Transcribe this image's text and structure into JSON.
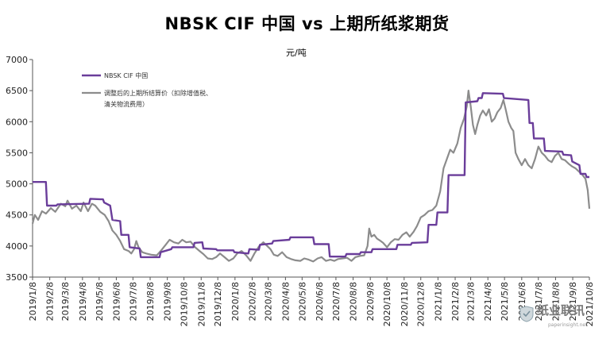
{
  "title": "NBSK CIF 中国 vs 上期所纸浆期货",
  "unit": "元/吨",
  "watermark": {
    "main": "纸业联讯",
    "url": "paperinsight.net"
  },
  "chart_data": {
    "type": "line",
    "title": "NBSK CIF 中国 vs 上期所纸浆期货",
    "ylabel": "元/吨",
    "ylim": [
      3500,
      7000
    ],
    "yticks": [
      3500,
      4000,
      4500,
      5000,
      5500,
      6000,
      6500,
      7000
    ],
    "xlim": [
      "2019/1/8",
      "2021/10/8"
    ],
    "xticks": [
      "2019/1/8",
      "2019/2/8",
      "2019/3/8",
      "2019/4/8",
      "2019/5/8",
      "2019/6/8",
      "2019/7/8",
      "2019/8/8",
      "2019/9/8",
      "2019/10/8",
      "2019/11/8",
      "2019/12/8",
      "2020/1/8",
      "2020/2/8",
      "2020/3/8",
      "2020/4/8",
      "2020/5/8",
      "2020/6/8",
      "2020/7/8",
      "2020/8/8",
      "2020/9/8",
      "2020/10/8",
      "2020/11/8",
      "2020/12/8",
      "2021/1/8",
      "2021/2/8",
      "2021/3/8",
      "2021/4/8",
      "2021/5/8",
      "2021/6/8",
      "2021/7/8",
      "2021/8/8",
      "2021/9/8",
      "2021/10/8"
    ],
    "grid": false,
    "legend": "top-left",
    "series": [
      {
        "name": "NBSK CIF 中国",
        "color": "#6a3d9a",
        "step": true,
        "points": [
          [
            "2019/1/8",
            5030
          ],
          [
            "2019/2/1",
            5030
          ],
          [
            "2019/2/3",
            4650
          ],
          [
            "2019/2/20",
            4650
          ],
          [
            "2019/2/22",
            4670
          ],
          [
            "2019/4/20",
            4680
          ],
          [
            "2019/4/22",
            4760
          ],
          [
            "2019/5/15",
            4750
          ],
          [
            "2019/5/17",
            4700
          ],
          [
            "2019/5/28",
            4650
          ],
          [
            "2019/6/1",
            4420
          ],
          [
            "2019/6/15",
            4400
          ],
          [
            "2019/6/17",
            4180
          ],
          [
            "2019/6/30",
            4180
          ],
          [
            "2019/7/2",
            3980
          ],
          [
            "2019/7/20",
            3960
          ],
          [
            "2019/7/22",
            3820
          ],
          [
            "2019/8/25",
            3820
          ],
          [
            "2019/8/27",
            3900
          ],
          [
            "2019/9/15",
            3950
          ],
          [
            "2019/9/17",
            3980
          ],
          [
            "2019/10/25",
            3980
          ],
          [
            "2019/10/27",
            4050
          ],
          [
            "2019/11/10",
            4060
          ],
          [
            "2019/11/12",
            3960
          ],
          [
            "2019/12/5",
            3950
          ],
          [
            "2019/12/7",
            3930
          ],
          [
            "2020/1/5",
            3930
          ],
          [
            "2020/1/7",
            3900
          ],
          [
            "2020/2/1",
            3880
          ],
          [
            "2020/2/3",
            3950
          ],
          [
            "2020/2/20",
            3940
          ],
          [
            "2020/2/22",
            4020
          ],
          [
            "2020/3/15",
            4040
          ],
          [
            "2020/3/17",
            4080
          ],
          [
            "2020/4/15",
            4100
          ],
          [
            "2020/4/17",
            4140
          ],
          [
            "2020/5/28",
            4140
          ],
          [
            "2020/5/30",
            4030
          ],
          [
            "2020/6/25",
            4030
          ],
          [
            "2020/6/27",
            3830
          ],
          [
            "2020/7/25",
            3830
          ],
          [
            "2020/7/27",
            3870
          ],
          [
            "2020/8/20",
            3870
          ],
          [
            "2020/8/22",
            3900
          ],
          [
            "2020/9/10",
            3900
          ],
          [
            "2020/9/12",
            3950
          ],
          [
            "2020/10/25",
            3950
          ],
          [
            "2020/10/27",
            4020
          ],
          [
            "2020/11/20",
            4020
          ],
          [
            "2020/11/22",
            4050
          ],
          [
            "2020/12/20",
            4060
          ],
          [
            "2020/12/22",
            4340
          ],
          [
            "2021/1/5",
            4340
          ],
          [
            "2021/1/7",
            4540
          ],
          [
            "2021/1/25",
            4540
          ],
          [
            "2021/1/27",
            5140
          ],
          [
            "2021/2/25",
            5140
          ],
          [
            "2021/2/27",
            6310
          ],
          [
            "2021/3/20",
            6330
          ],
          [
            "2021/3/22",
            6380
          ],
          [
            "2021/3/28",
            6380
          ],
          [
            "2021/3/30",
            6460
          ],
          [
            "2021/5/5",
            6450
          ],
          [
            "2021/5/7",
            6380
          ],
          [
            "2021/6/20",
            6350
          ],
          [
            "2021/6/22",
            5980
          ],
          [
            "2021/6/28",
            5980
          ],
          [
            "2021/6/30",
            5730
          ],
          [
            "2021/7/18",
            5730
          ],
          [
            "2021/7/20",
            5530
          ],
          [
            "2021/8/20",
            5520
          ],
          [
            "2021/8/22",
            5470
          ],
          [
            "2021/9/5",
            5460
          ],
          [
            "2021/9/7",
            5360
          ],
          [
            "2021/9/20",
            5300
          ],
          [
            "2021/9/22",
            5160
          ],
          [
            "2021/10/1",
            5160
          ],
          [
            "2021/10/3",
            5110
          ],
          [
            "2021/10/8",
            5110
          ]
        ]
      },
      {
        "name": "调整后的上期所结算价（扣除增值税、清关物流费用）",
        "color": "#8c8c8c",
        "step": false,
        "points": [
          [
            "2019/1/8",
            4360
          ],
          [
            "2019/1/12",
            4500
          ],
          [
            "2019/1/18",
            4420
          ],
          [
            "2019/1/25",
            4560
          ],
          [
            "2019/2/1",
            4520
          ],
          [
            "2019/2/10",
            4610
          ],
          [
            "2019/2/18",
            4550
          ],
          [
            "2019/2/28",
            4680
          ],
          [
            "2019/3/8",
            4640
          ],
          [
            "2019/3/12",
            4730
          ],
          [
            "2019/3/20",
            4600
          ],
          [
            "2019/3/28",
            4650
          ],
          [
            "2019/4/5",
            4560
          ],
          [
            "2019/4/10",
            4700
          ],
          [
            "2019/4/18",
            4560
          ],
          [
            "2019/4/25",
            4680
          ],
          [
            "2019/5/1",
            4650
          ],
          [
            "2019/5/10",
            4550
          ],
          [
            "2019/5/18",
            4500
          ],
          [
            "2019/5/25",
            4400
          ],
          [
            "2019/6/1",
            4250
          ],
          [
            "2019/6/8",
            4180
          ],
          [
            "2019/6/15",
            4080
          ],
          [
            "2019/6/22",
            3950
          ],
          [
            "2019/6/30",
            3920
          ],
          [
            "2019/7/5",
            3880
          ],
          [
            "2019/7/10",
            3950
          ],
          [
            "2019/7/14",
            4080
          ],
          [
            "2019/7/18",
            3980
          ],
          [
            "2019/7/25",
            3900
          ],
          [
            "2019/8/1",
            3880
          ],
          [
            "2019/8/10",
            3860
          ],
          [
            "2019/8/20",
            3850
          ],
          [
            "2019/8/28",
            3930
          ],
          [
            "2019/9/5",
            4020
          ],
          [
            "2019/9/12",
            4100
          ],
          [
            "2019/9/20",
            4060
          ],
          [
            "2019/9/28",
            4040
          ],
          [
            "2019/10/5",
            4100
          ],
          [
            "2019/10/12",
            4060
          ],
          [
            "2019/10/20",
            4070
          ],
          [
            "2019/10/28",
            3980
          ],
          [
            "2019/11/5",
            3920
          ],
          [
            "2019/11/12",
            3870
          ],
          [
            "2019/11/20",
            3800
          ],
          [
            "2019/11/28",
            3790
          ],
          [
            "2019/12/5",
            3820
          ],
          [
            "2019/12/12",
            3880
          ],
          [
            "2019/12/20",
            3820
          ],
          [
            "2019/12/28",
            3760
          ],
          [
            "2020/1/5",
            3800
          ],
          [
            "2020/1/12",
            3880
          ],
          [
            "2020/1/20",
            3920
          ],
          [
            "2020/1/28",
            3850
          ],
          [
            "2020/2/5",
            3760
          ],
          [
            "2020/2/12",
            3880
          ],
          [
            "2020/2/20",
            3990
          ],
          [
            "2020/2/28",
            4060
          ],
          [
            "2020/3/5",
            4010
          ],
          [
            "2020/3/12",
            3950
          ],
          [
            "2020/3/18",
            3860
          ],
          [
            "2020/3/25",
            3840
          ],
          [
            "2020/4/2",
            3900
          ],
          [
            "2020/4/10",
            3820
          ],
          [
            "2020/4/18",
            3790
          ],
          [
            "2020/4/26",
            3770
          ],
          [
            "2020/5/5",
            3760
          ],
          [
            "2020/5/12",
            3800
          ],
          [
            "2020/5/20",
            3780
          ],
          [
            "2020/5/28",
            3750
          ],
          [
            "2020/6/5",
            3800
          ],
          [
            "2020/6/12",
            3820
          ],
          [
            "2020/6/20",
            3760
          ],
          [
            "2020/6/28",
            3780
          ],
          [
            "2020/7/5",
            3760
          ],
          [
            "2020/7/12",
            3790
          ],
          [
            "2020/7/20",
            3800
          ],
          [
            "2020/7/28",
            3810
          ],
          [
            "2020/8/5",
            3760
          ],
          [
            "2020/8/12",
            3820
          ],
          [
            "2020/8/20",
            3840
          ],
          [
            "2020/8/28",
            3850
          ],
          [
            "2020/9/3",
            4000
          ],
          [
            "2020/9/6",
            4280
          ],
          [
            "2020/9/10",
            4150
          ],
          [
            "2020/9/15",
            4180
          ],
          [
            "2020/9/20",
            4120
          ],
          [
            "2020/9/25",
            4090
          ],
          [
            "2020/10/1",
            4050
          ],
          [
            "2020/10/8",
            3980
          ],
          [
            "2020/10/15",
            4060
          ],
          [
            "2020/10/22",
            4110
          ],
          [
            "2020/10/29",
            4100
          ],
          [
            "2020/11/5",
            4180
          ],
          [
            "2020/11/12",
            4220
          ],
          [
            "2020/11/18",
            4150
          ],
          [
            "2020/11/25",
            4230
          ],
          [
            "2020/12/1",
            4320
          ],
          [
            "2020/12/8",
            4460
          ],
          [
            "2020/12/15",
            4500
          ],
          [
            "2020/12/22",
            4560
          ],
          [
            "2020/12/29",
            4580
          ],
          [
            "2021/1/5",
            4650
          ],
          [
            "2021/1/12",
            4880
          ],
          [
            "2021/1/18",
            5250
          ],
          [
            "2021/1/24",
            5400
          ],
          [
            "2021/1/30",
            5550
          ],
          [
            "2021/2/5",
            5500
          ],
          [
            "2021/2/12",
            5650
          ],
          [
            "2021/2/18",
            5900
          ],
          [
            "2021/2/24",
            6050
          ],
          [
            "2021/3/1",
            6250
          ],
          [
            "2021/3/4",
            6500
          ],
          [
            "2021/3/8",
            6250
          ],
          [
            "2021/3/12",
            5950
          ],
          [
            "2021/3/16",
            5800
          ],
          [
            "2021/3/20",
            5950
          ],
          [
            "2021/3/25",
            6100
          ],
          [
            "2021/3/30",
            6180
          ],
          [
            "2021/4/5",
            6100
          ],
          [
            "2021/4/10",
            6200
          ],
          [
            "2021/4/15",
            6000
          ],
          [
            "2021/4/20",
            6050
          ],
          [
            "2021/4/25",
            6150
          ],
          [
            "2021/5/1",
            6220
          ],
          [
            "2021/5/6",
            6350
          ],
          [
            "2021/5/10",
            6200
          ],
          [
            "2021/5/15",
            6000
          ],
          [
            "2021/5/20",
            5900
          ],
          [
            "2021/5/24",
            5850
          ],
          [
            "2021/5/28",
            5500
          ],
          [
            "2021/6/2",
            5400
          ],
          [
            "2021/6/8",
            5300
          ],
          [
            "2021/6/14",
            5400
          ],
          [
            "2021/6/20",
            5300
          ],
          [
            "2021/6/26",
            5250
          ],
          [
            "2021/7/2",
            5400
          ],
          [
            "2021/7/8",
            5600
          ],
          [
            "2021/7/14",
            5500
          ],
          [
            "2021/7/20",
            5450
          ],
          [
            "2021/7/26",
            5380
          ],
          [
            "2021/8/1",
            5350
          ],
          [
            "2021/8/7",
            5450
          ],
          [
            "2021/8/13",
            5500
          ],
          [
            "2021/8/19",
            5400
          ],
          [
            "2021/8/25",
            5380
          ],
          [
            "2021/9/1",
            5320
          ],
          [
            "2021/9/7",
            5280
          ],
          [
            "2021/9/13",
            5250
          ],
          [
            "2021/9/19",
            5200
          ],
          [
            "2021/9/25",
            5150
          ],
          [
            "2021/10/1",
            5080
          ],
          [
            "2021/10/5",
            4900
          ],
          [
            "2021/10/8",
            4600
          ]
        ]
      }
    ]
  }
}
